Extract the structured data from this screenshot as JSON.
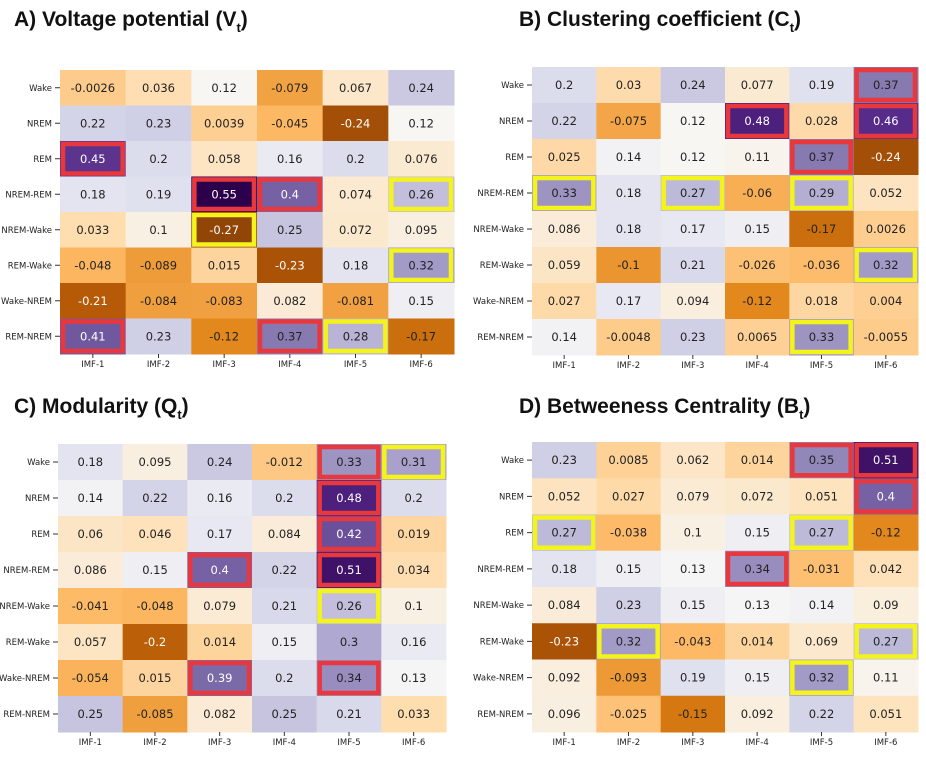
{
  "chart_data": [
    {
      "type": "heatmap",
      "panel": "A",
      "title": {
        "prefix": "A)  Voltage potential (V",
        "subscript": "t",
        "suffix": ")"
      },
      "rows": [
        "Wake",
        "NREM",
        "REM",
        "NREM-REM",
        "NREM-Wake",
        "REM-Wake",
        "Wake-NREM",
        "REM-NREM"
      ],
      "cols": [
        "IMF-1",
        "IMF-2",
        "IMF-3",
        "IMF-4",
        "IMF-5",
        "IMF-6"
      ],
      "values": [
        [
          "-0.0026",
          "0.036",
          "0.12",
          "-0.079",
          "0.067",
          "0.24"
        ],
        [
          "0.22",
          "0.23",
          "0.0039",
          "-0.045",
          "-0.24",
          "0.12"
        ],
        [
          "0.45",
          "0.2",
          "0.058",
          "0.16",
          "0.2",
          "0.076"
        ],
        [
          "0.18",
          "0.19",
          "0.55",
          "0.4",
          "0.074",
          "0.26"
        ],
        [
          "0.033",
          "0.1",
          "-0.27",
          "0.25",
          "0.072",
          "0.095"
        ],
        [
          "-0.048",
          "-0.089",
          "0.015",
          "-0.23",
          "0.18",
          "0.32"
        ],
        [
          "-0.21",
          "-0.084",
          "-0.083",
          "0.082",
          "-0.081",
          "0.15"
        ],
        [
          "0.41",
          "0.23",
          "-0.12",
          "0.37",
          "0.28",
          "-0.17"
        ]
      ],
      "red_boxes": [
        [
          2,
          0
        ],
        [
          3,
          2
        ],
        [
          3,
          3
        ],
        [
          7,
          0
        ],
        [
          7,
          3
        ]
      ],
      "yellow_boxes": [
        [
          3,
          5
        ],
        [
          4,
          2
        ],
        [
          5,
          5
        ],
        [
          7,
          4
        ]
      ]
    },
    {
      "type": "heatmap",
      "panel": "B",
      "title": {
        "prefix": "B)  Clustering coefficient (C",
        "subscript": "t",
        "suffix": ")"
      },
      "rows": [
        "Wake",
        "NREM",
        "REM",
        "NREM-REM",
        "NREM-Wake",
        "REM-Wake",
        "Wake-NREM",
        "REM-NREM"
      ],
      "cols": [
        "IMF-1",
        "IMF-2",
        "IMF-3",
        "IMF-4",
        "IMF-5",
        "IMF-6"
      ],
      "values": [
        [
          "0.2",
          "0.03",
          "0.24",
          "0.077",
          "0.19",
          "0.37"
        ],
        [
          "0.22",
          "-0.075",
          "0.12",
          "0.48",
          "0.028",
          "0.46"
        ],
        [
          "0.025",
          "0.14",
          "0.12",
          "0.11",
          "0.37",
          "-0.24"
        ],
        [
          "0.33",
          "0.18",
          "0.27",
          "-0.06",
          "0.29",
          "0.052"
        ],
        [
          "0.086",
          "0.18",
          "0.17",
          "0.15",
          "-0.17",
          "0.0026"
        ],
        [
          "0.059",
          "-0.1",
          "0.21",
          "-0.026",
          "-0.036",
          "0.32"
        ],
        [
          "0.027",
          "0.17",
          "0.094",
          "-0.12",
          "0.018",
          "0.004"
        ],
        [
          "0.14",
          "-0.0048",
          "0.23",
          "0.0065",
          "0.33",
          "-0.0055"
        ]
      ],
      "red_boxes": [
        [
          0,
          5
        ],
        [
          1,
          3
        ],
        [
          1,
          5
        ],
        [
          2,
          4
        ]
      ],
      "yellow_boxes": [
        [
          3,
          0
        ],
        [
          3,
          2
        ],
        [
          3,
          4
        ],
        [
          5,
          5
        ],
        [
          7,
          4
        ]
      ]
    },
    {
      "type": "heatmap",
      "panel": "C",
      "title": {
        "prefix": "C)  Modularity (Q",
        "subscript": "t",
        "suffix": ")"
      },
      "rows": [
        "Wake",
        "NREM",
        "REM",
        "NREM-REM",
        "NREM-Wake",
        "REM-Wake",
        "Wake-NREM",
        "REM-NREM"
      ],
      "cols": [
        "IMF-1",
        "IMF-2",
        "IMF-3",
        "IMF-4",
        "IMF-5",
        "IMF-6"
      ],
      "values": [
        [
          "0.18",
          "0.095",
          "0.24",
          "-0.012",
          "0.33",
          "0.31"
        ],
        [
          "0.14",
          "0.22",
          "0.16",
          "0.2",
          "0.48",
          "0.2"
        ],
        [
          "0.06",
          "0.046",
          "0.17",
          "0.084",
          "0.42",
          "0.019"
        ],
        [
          "0.086",
          "0.15",
          "0.4",
          "0.22",
          "0.51",
          "0.034"
        ],
        [
          "-0.041",
          "-0.048",
          "0.079",
          "0.21",
          "0.26",
          "0.1"
        ],
        [
          "0.057",
          "-0.2",
          "0.014",
          "0.15",
          "0.3",
          "0.16"
        ],
        [
          "-0.054",
          "0.015",
          "0.39",
          "0.2",
          "0.34",
          "0.13"
        ],
        [
          "0.25",
          "-0.085",
          "0.082",
          "0.25",
          "0.21",
          "0.033"
        ]
      ],
      "red_boxes": [
        [
          0,
          4
        ],
        [
          1,
          4
        ],
        [
          2,
          4
        ],
        [
          3,
          2
        ],
        [
          3,
          4
        ],
        [
          6,
          2
        ],
        [
          6,
          4
        ]
      ],
      "yellow_boxes": [
        [
          0,
          5
        ],
        [
          4,
          4
        ]
      ]
    },
    {
      "type": "heatmap",
      "panel": "D",
      "title": {
        "prefix": "D)  Betweeness Centrality (B",
        "subscript": "t",
        "suffix": ")"
      },
      "rows": [
        "Wake",
        "NREM",
        "REM",
        "NREM-REM",
        "NREM-Wake",
        "REM-Wake",
        "Wake-NREM",
        "REM-NREM"
      ],
      "cols": [
        "IMF-1",
        "IMF-2",
        "IMF-3",
        "IMF-4",
        "IMF-5",
        "IMF-6"
      ],
      "values": [
        [
          "0.23",
          "0.0085",
          "0.062",
          "0.014",
          "0.35",
          "0.51"
        ],
        [
          "0.052",
          "0.027",
          "0.079",
          "0.072",
          "0.051",
          "0.4"
        ],
        [
          "0.27",
          "-0.038",
          "0.1",
          "0.15",
          "0.27",
          "-0.12"
        ],
        [
          "0.18",
          "0.15",
          "0.13",
          "0.34",
          "-0.031",
          "0.042"
        ],
        [
          "0.084",
          "0.23",
          "0.15",
          "0.13",
          "0.14",
          "0.09"
        ],
        [
          "-0.23",
          "0.32",
          "-0.043",
          "0.014",
          "0.069",
          "0.27"
        ],
        [
          "0.092",
          "-0.093",
          "0.19",
          "0.15",
          "0.32",
          "0.11"
        ],
        [
          "0.096",
          "-0.025",
          "-0.15",
          "0.092",
          "0.22",
          "0.051"
        ]
      ],
      "red_boxes": [
        [
          0,
          4
        ],
        [
          0,
          5
        ],
        [
          1,
          5
        ],
        [
          3,
          3
        ]
      ],
      "yellow_boxes": [
        [
          2,
          0
        ],
        [
          2,
          4
        ],
        [
          5,
          1
        ],
        [
          5,
          5
        ],
        [
          6,
          4
        ]
      ]
    }
  ],
  "colors": {
    "highlight_red": "#e8383d",
    "highlight_yellow": "#f4f41c",
    "text_dark": "#222222",
    "text_light": "#ffffff",
    "colormap": "PuOr"
  }
}
